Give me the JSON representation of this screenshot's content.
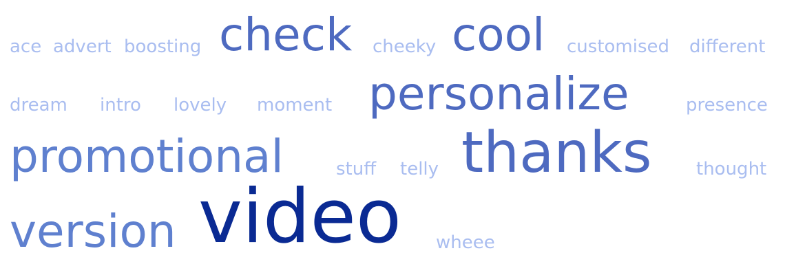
{
  "colors": {
    "background": "#ffffff",
    "level1": "#a9bdf0",
    "level2": "#5f80cf",
    "level3": "#4e6ac0",
    "level4": "#0a2a93"
  },
  "words": [
    {
      "text": "ace",
      "level": 1
    },
    {
      "text": "advert",
      "level": 1
    },
    {
      "text": "boosting",
      "level": 1
    },
    {
      "text": "check",
      "level": 3
    },
    {
      "text": "cheeky",
      "level": 1
    },
    {
      "text": "cool",
      "level": 3
    },
    {
      "text": "customised",
      "level": 1
    },
    {
      "text": "different",
      "level": 1
    },
    {
      "text": "dream",
      "level": 1
    },
    {
      "text": "intro",
      "level": 1
    },
    {
      "text": "lovely",
      "level": 1
    },
    {
      "text": "moment",
      "level": 1
    },
    {
      "text": "personalize",
      "level": 3
    },
    {
      "text": "presence",
      "level": 1
    },
    {
      "text": "promotional",
      "level": 2
    },
    {
      "text": "stuff",
      "level": 1
    },
    {
      "text": "telly",
      "level": 1
    },
    {
      "text": "thanks",
      "level": 3
    },
    {
      "text": "thought",
      "level": 1
    },
    {
      "text": "version",
      "level": 2
    },
    {
      "text": "video",
      "level": 4
    },
    {
      "text": "wheee",
      "level": 1
    }
  ]
}
